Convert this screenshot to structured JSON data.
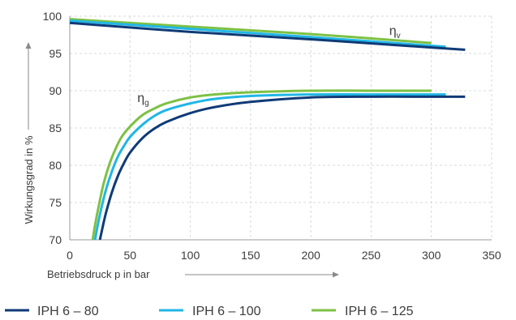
{
  "chart_data": {
    "type": "line",
    "xlabel": "Betriebsdruck p in bar",
    "ylabel": "Wirkungsgrad in %",
    "xlim": [
      0,
      350
    ],
    "ylim": [
      70,
      100
    ],
    "x_ticks": [
      0,
      50,
      100,
      150,
      200,
      250,
      300,
      350
    ],
    "y_ticks": [
      70,
      75,
      80,
      85,
      90,
      95,
      100
    ],
    "grid": true,
    "legend_position": "bottom",
    "annotations": [
      {
        "base": "η",
        "sub": "v",
        "x": 265,
        "y": 97.5
      },
      {
        "base": "η",
        "sub": "g",
        "x": 56,
        "y": 88.5
      }
    ],
    "series": [
      {
        "name": "IPH 6 – 80",
        "color": "#0f3a76",
        "efficiency_v": {
          "x": [
            0,
            100,
            200,
            300,
            328
          ],
          "y": [
            99.1,
            97.9,
            96.9,
            95.8,
            95.5
          ]
        },
        "efficiency_g": {
          "x": [
            25,
            27,
            30,
            35,
            40,
            45,
            50,
            60,
            70,
            80,
            100,
            120,
            150,
            200,
            250,
            300,
            328
          ],
          "y": [
            70.0,
            71.5,
            73.6,
            76.4,
            78.6,
            80.3,
            81.7,
            83.6,
            84.9,
            85.8,
            87.0,
            87.8,
            88.5,
            89.1,
            89.2,
            89.2,
            89.2
          ]
        }
      },
      {
        "name": "IPH 6 – 100",
        "color": "#21b6e6",
        "efficiency_v": {
          "x": [
            0,
            100,
            200,
            312
          ],
          "y": [
            99.4,
            98.3,
            97.2,
            95.9
          ]
        },
        "efficiency_g": {
          "x": [
            21,
            23,
            26,
            30,
            35,
            40,
            45,
            50,
            60,
            70,
            80,
            100,
            120,
            150,
            200,
            250,
            312
          ],
          "y": [
            70.0,
            71.8,
            74.1,
            76.7,
            79.2,
            81.2,
            82.6,
            83.8,
            85.4,
            86.6,
            87.4,
            88.3,
            88.9,
            89.3,
            89.5,
            89.5,
            89.5
          ]
        }
      },
      {
        "name": "IPH 6 – 125",
        "color": "#7dc144",
        "efficiency_v": {
          "x": [
            0,
            100,
            200,
            300
          ],
          "y": [
            99.6,
            98.6,
            97.6,
            96.4
          ]
        },
        "efficiency_g": {
          "x": [
            19,
            21,
            24,
            28,
            33,
            38,
            43,
            50,
            60,
            70,
            80,
            100,
            120,
            150,
            200,
            250,
            300
          ],
          "y": [
            70.0,
            72.0,
            74.5,
            77.5,
            80.2,
            82.2,
            83.8,
            85.2,
            86.7,
            87.6,
            88.3,
            89.1,
            89.5,
            89.8,
            90.0,
            90.0,
            90.0
          ]
        }
      }
    ]
  }
}
